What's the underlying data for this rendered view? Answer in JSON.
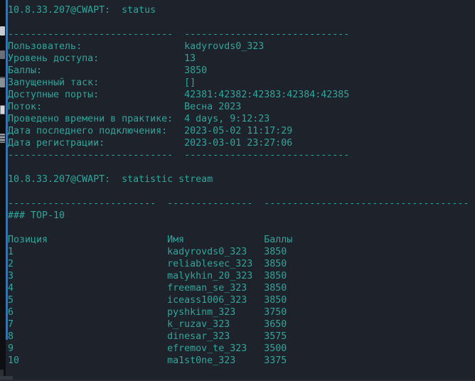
{
  "terminal": {
    "prompt1": "10.8.33.207@CWAPT:  status",
    "prompt2": "10.8.33.207@CWAPT:  statistic stream",
    "status": {
      "separator_col1": "-----------------------------",
      "separator_col2": "-----------------------------",
      "rows": [
        {
          "label": "Пользователь:",
          "value": "kadyrovds0_323"
        },
        {
          "label": "Уровень доступа:",
          "value": "13"
        },
        {
          "label": "Баллы:",
          "value": "3850"
        },
        {
          "label": "Запущенный таск:",
          "value": "[]"
        },
        {
          "label": "Доступные порты:",
          "value": "42381:42382:42383:42384:42385"
        },
        {
          "label": "Поток:",
          "value": "Весна 2023"
        },
        {
          "label": "Проведено времени в практике:",
          "value": "4 days, 9:12:23"
        },
        {
          "label": "Дата последнего подключения:",
          "value": "2023-05-02 11:17:29"
        },
        {
          "label": "Дата регистрации:",
          "value": "2023-03-01 23:27:06"
        }
      ]
    },
    "top10": {
      "separator_col1": "--------------------------",
      "separator_col2": "---------------",
      "separator_col3": "------------------------------------",
      "heading": "### TOP-10",
      "headers": {
        "position": "Позиция",
        "name": "Имя",
        "score": "Баллы"
      },
      "rows": [
        {
          "position": "1",
          "name": "kadyrovds0_323",
          "score": "3850"
        },
        {
          "position": "2",
          "name": "reliablesec_323",
          "score": "3850"
        },
        {
          "position": "3",
          "name": "malykhin_20_323",
          "score": "3850"
        },
        {
          "position": "4",
          "name": "freeman_se_323",
          "score": "3850"
        },
        {
          "position": "5",
          "name": "iceass1006_323",
          "score": "3850"
        },
        {
          "position": "6",
          "name": "pyshkinm_323",
          "score": "3750"
        },
        {
          "position": "7",
          "name": "k_ruzav_323",
          "score": "3650"
        },
        {
          "position": "8",
          "name": "dinesar_323",
          "score": "3575"
        },
        {
          "position": "9",
          "name": "efremov_te_323",
          "score": "3500"
        },
        {
          "position": "10",
          "name": "ma1st0ne_323",
          "score": "3375"
        }
      ]
    }
  },
  "colors": {
    "background": "#1e222b",
    "text": "#2fa79c",
    "window_accent_line": "#3a72ae",
    "left_strip": "#0d0f13"
  }
}
